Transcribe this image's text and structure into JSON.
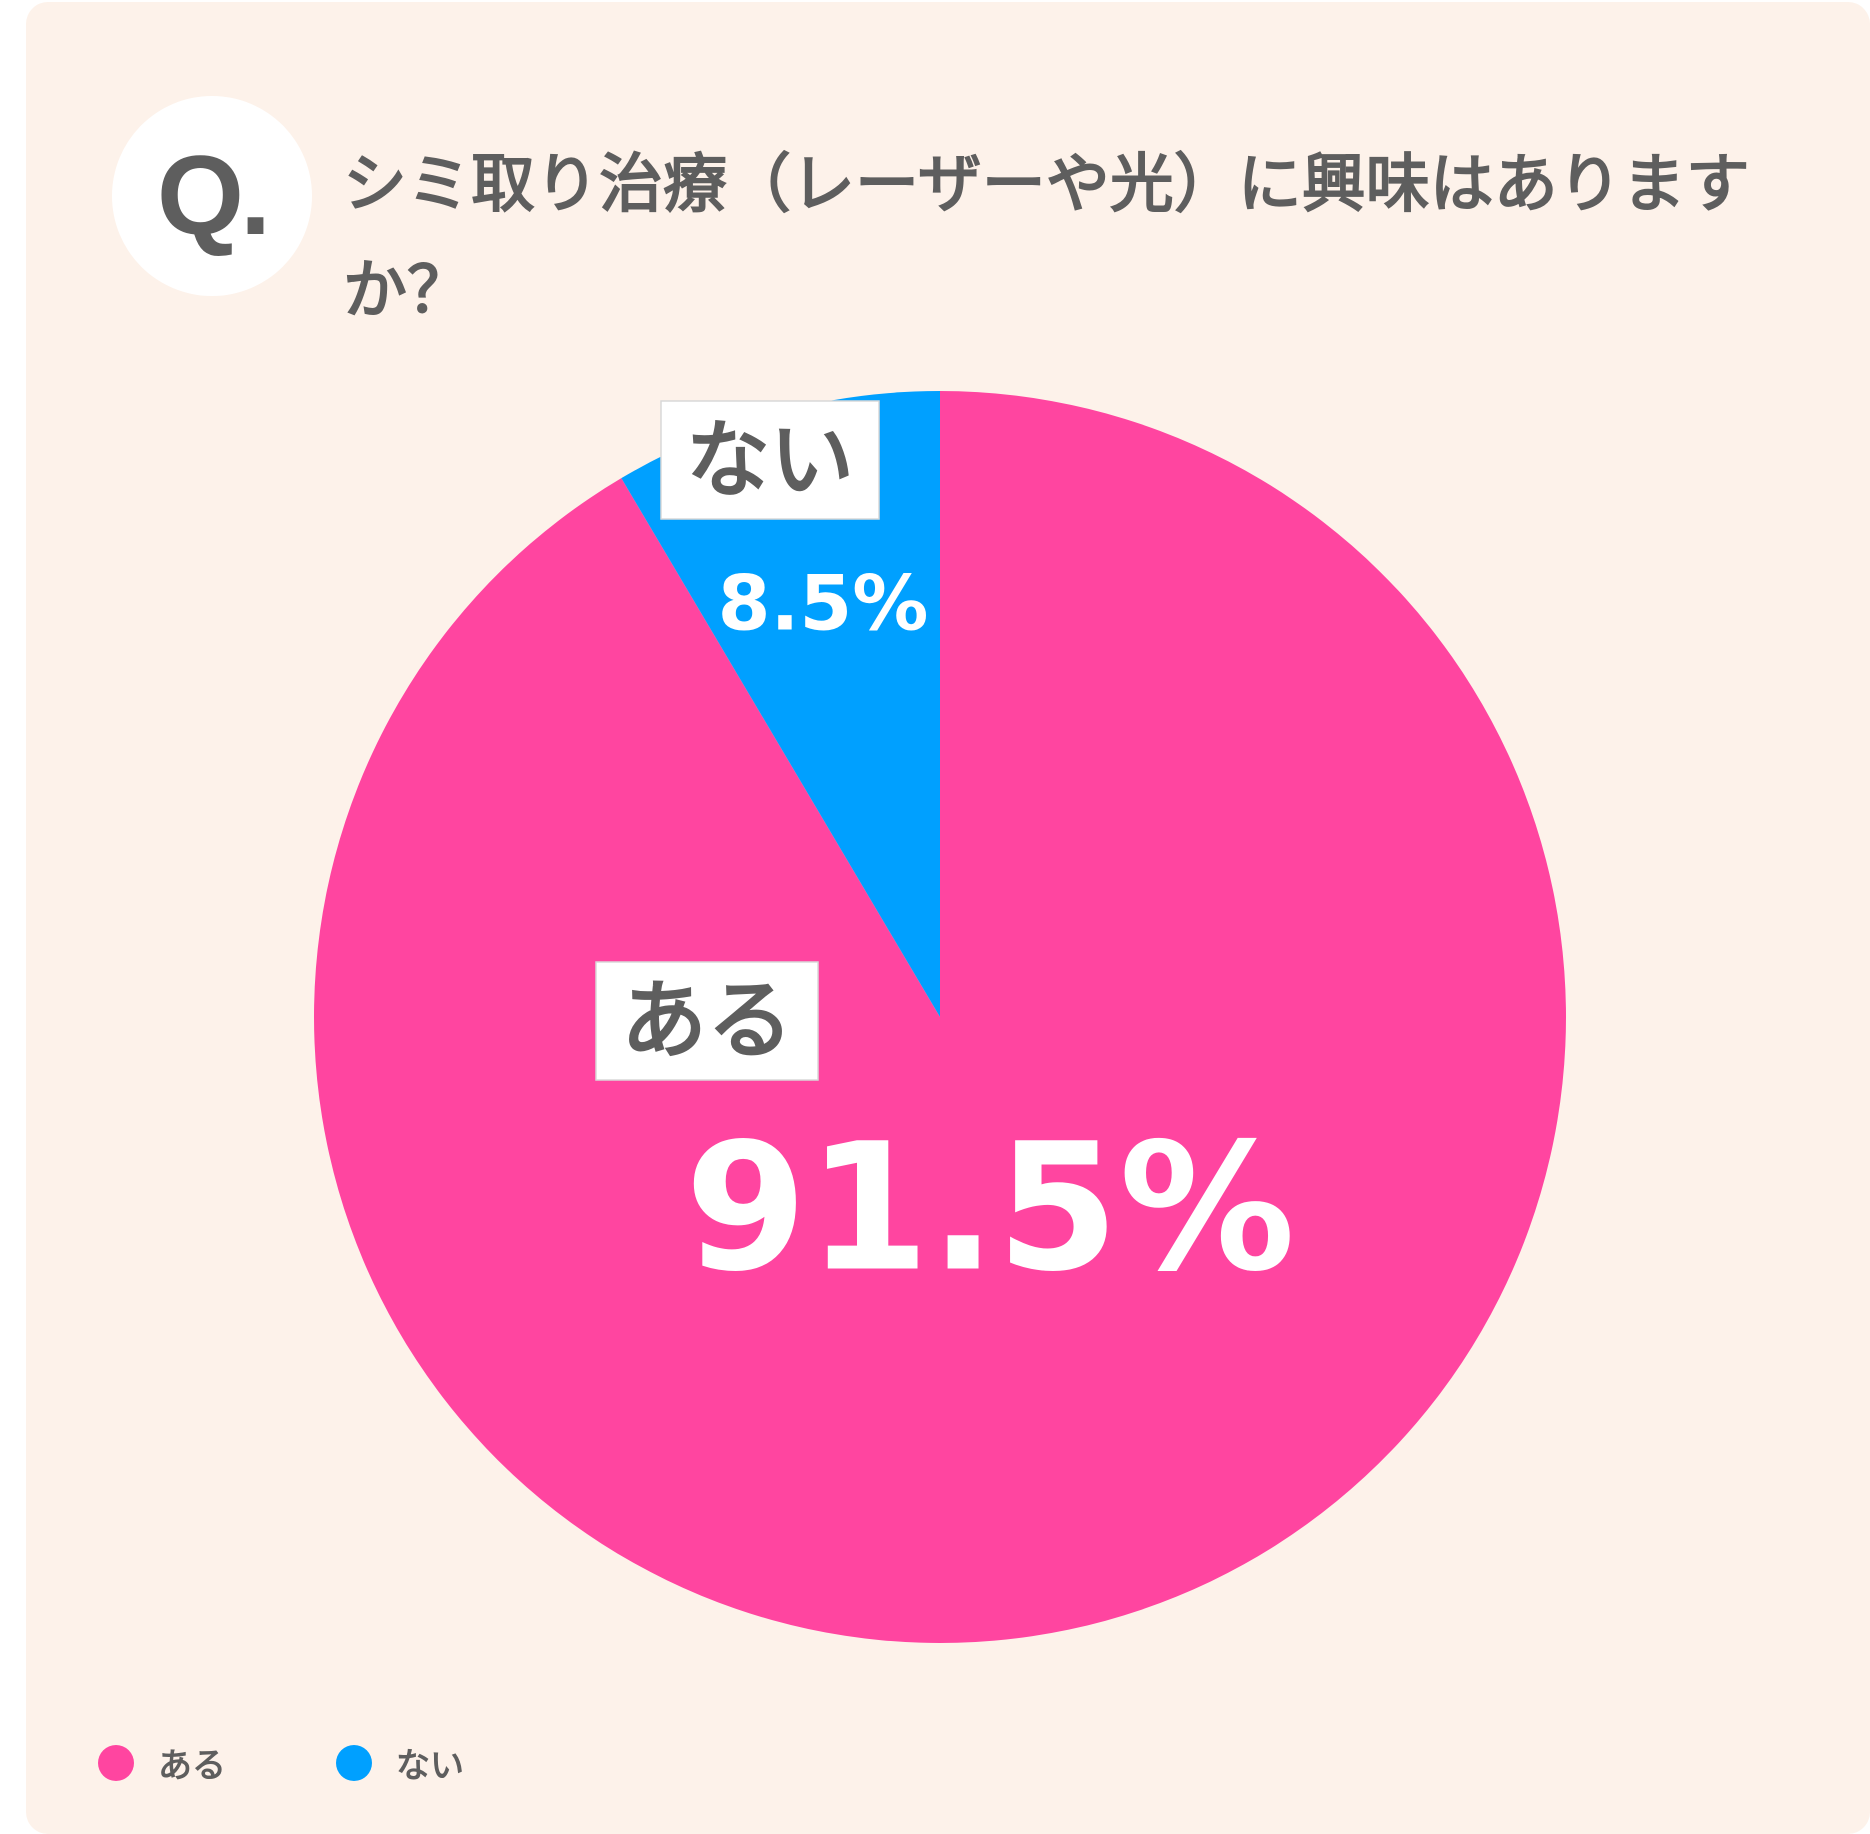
{
  "badge": "Q.",
  "question": "シミ取り治療（レーザーや光）に興味はありますか？",
  "colors": {
    "background": "#fdf2ea",
    "text": "#5e5e5e",
    "aru": "#ff45a0",
    "nai": "#00a0ff"
  },
  "chart_data": {
    "type": "pie",
    "title": "シミ取り治療（レーザーや光）に興味はありますか？",
    "slices": [
      {
        "label": "ある",
        "value": 91.5,
        "value_label": "91.5%",
        "color": "#ff45a0"
      },
      {
        "label": "ない",
        "value": 8.5,
        "value_label": "8.5%",
        "color": "#00a0ff"
      }
    ],
    "start": "12 o'clock",
    "direction": "clockwise",
    "legend_position": "bottom-left"
  },
  "legend": [
    {
      "label": "ある",
      "color": "#ff45a0"
    },
    {
      "label": "ない",
      "color": "#00a0ff"
    }
  ]
}
